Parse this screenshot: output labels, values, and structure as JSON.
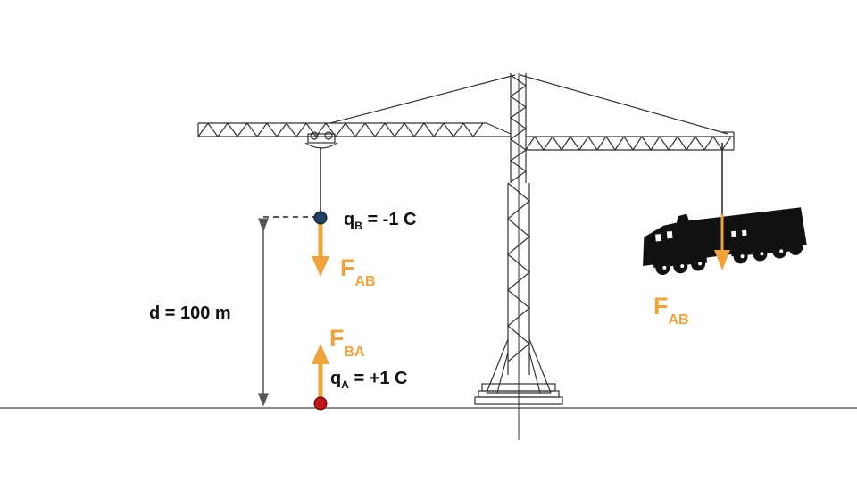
{
  "colors": {
    "force_arrow": "#F0A33A",
    "charge_b": "#1F3F66",
    "charge_a": "#C0161B",
    "structure": "#333333",
    "dimension": "#555555",
    "train": "#111111"
  },
  "labels": {
    "charge_b": {
      "main": "q",
      "sub": "B",
      "rest": " = -1 C"
    },
    "charge_a": {
      "main": "q",
      "sub": "A",
      "rest": " = +1 C"
    },
    "force_on_b": {
      "main": "F",
      "sub": "AB"
    },
    "force_on_a": {
      "main": "F",
      "sub": "BA"
    },
    "force_on_train": {
      "main": "F",
      "sub": "AB"
    },
    "distance": "d = 100 m"
  },
  "icons": {
    "crane": "tower-crane-icon",
    "train": "locomotive-icon"
  }
}
